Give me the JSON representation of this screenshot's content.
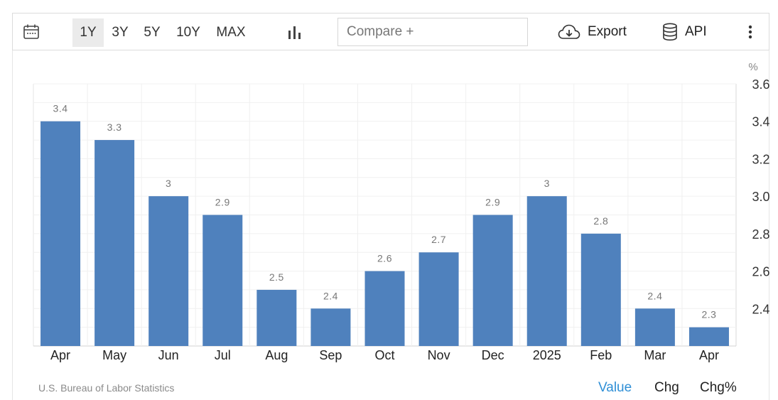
{
  "toolbar": {
    "calendar_icon": "calendar-icon",
    "ranges": [
      {
        "label": "1Y",
        "active": true
      },
      {
        "label": "3Y",
        "active": false
      },
      {
        "label": "5Y",
        "active": false
      },
      {
        "label": "10Y",
        "active": false
      },
      {
        "label": "MAX",
        "active": false
      }
    ],
    "chart_type_icon": "bar-chart-icon",
    "compare_placeholder": "Compare +",
    "export_label": "Export",
    "export_icon": "cloud-download-icon",
    "api_label": "API",
    "api_icon": "database-icon",
    "more_icon": "vertical-ellipsis-icon"
  },
  "chart_data": {
    "type": "bar",
    "categories": [
      "Apr",
      "May",
      "Jun",
      "Jul",
      "Aug",
      "Sep",
      "Oct",
      "Nov",
      "Dec",
      "2025",
      "Feb",
      "Mar",
      "Apr"
    ],
    "values": [
      3.4,
      3.3,
      3.0,
      2.9,
      2.5,
      2.4,
      2.6,
      2.7,
      2.9,
      3.0,
      2.8,
      2.4,
      2.3
    ],
    "data_labels": [
      "3.4",
      "3.3",
      "3",
      "2.9",
      "2.5",
      "2.4",
      "2.6",
      "2.7",
      "2.9",
      "3",
      "2.8",
      "2.4",
      "2.3"
    ],
    "unit": "%",
    "yticks": [
      "2.4",
      "2.6",
      "2.8",
      "3.0",
      "3.2",
      "3.4",
      "3.6"
    ],
    "ylim": [
      2.2,
      3.6
    ],
    "y_axis_side": "right",
    "grid": true,
    "bar_color": "#4f81bd",
    "label_color": "#777777"
  },
  "footer": {
    "source": "U.S. Bureau of Labor Statistics",
    "tabs": [
      {
        "label": "Value",
        "active": true
      },
      {
        "label": "Chg",
        "active": false
      },
      {
        "label": "Chg%",
        "active": false
      }
    ],
    "active_color": "#2f8fd6"
  }
}
